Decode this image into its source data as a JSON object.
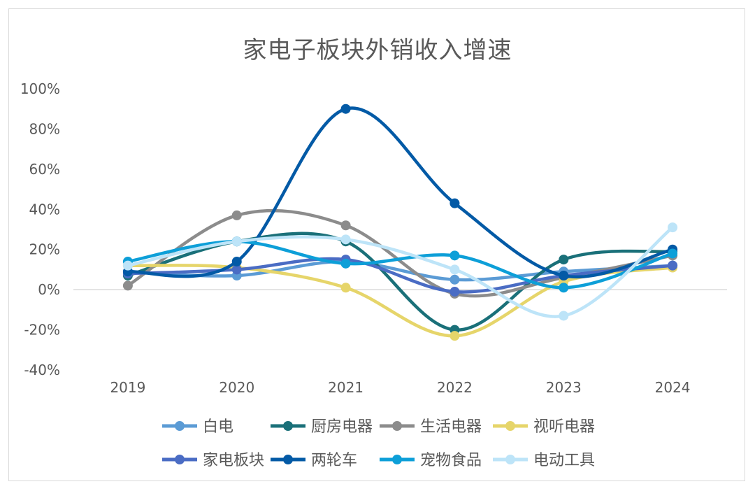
{
  "chart_data": {
    "type": "line",
    "title": "家电子板块外销收入增速",
    "x": [
      "2019",
      "2020",
      "2021",
      "2022",
      "2023",
      "2024"
    ],
    "y_tick_labels": [
      "100%",
      "80%",
      "60%",
      "40%",
      "20%",
      "0%",
      "-20%",
      "-40%"
    ],
    "ylim": [
      -40,
      100
    ],
    "y_unit": "%",
    "smooth": true,
    "grid": false,
    "legend_position": "bottom",
    "series": [
      {
        "name": "白电",
        "color": "#5b9bd5",
        "values": [
          9,
          7,
          14,
          5,
          9,
          12
        ]
      },
      {
        "name": "厨房电器",
        "color": "#1a7079",
        "values": [
          7,
          24,
          24,
          -20,
          15,
          19
        ]
      },
      {
        "name": "生活电器",
        "color": "#8c8c8c",
        "values": [
          2,
          37,
          32,
          -2,
          6,
          17
        ]
      },
      {
        "name": "视听电器",
        "color": "#e6d56a",
        "values": [
          12,
          11,
          1,
          -23,
          4,
          11
        ]
      },
      {
        "name": "家电板块",
        "color": "#4a6cc4",
        "values": [
          8,
          10,
          15,
          -1,
          7,
          12
        ]
      },
      {
        "name": "两轮车",
        "color": "#035aa6",
        "values": [
          9,
          14,
          90,
          43,
          7,
          20
        ]
      },
      {
        "name": "宠物食品",
        "color": "#0d9fd8",
        "values": [
          14,
          24,
          13,
          17,
          1,
          18
        ]
      },
      {
        "name": "电动工具",
        "color": "#bde4f8",
        "values": [
          12,
          24,
          25,
          10,
          -13,
          31
        ]
      }
    ]
  }
}
